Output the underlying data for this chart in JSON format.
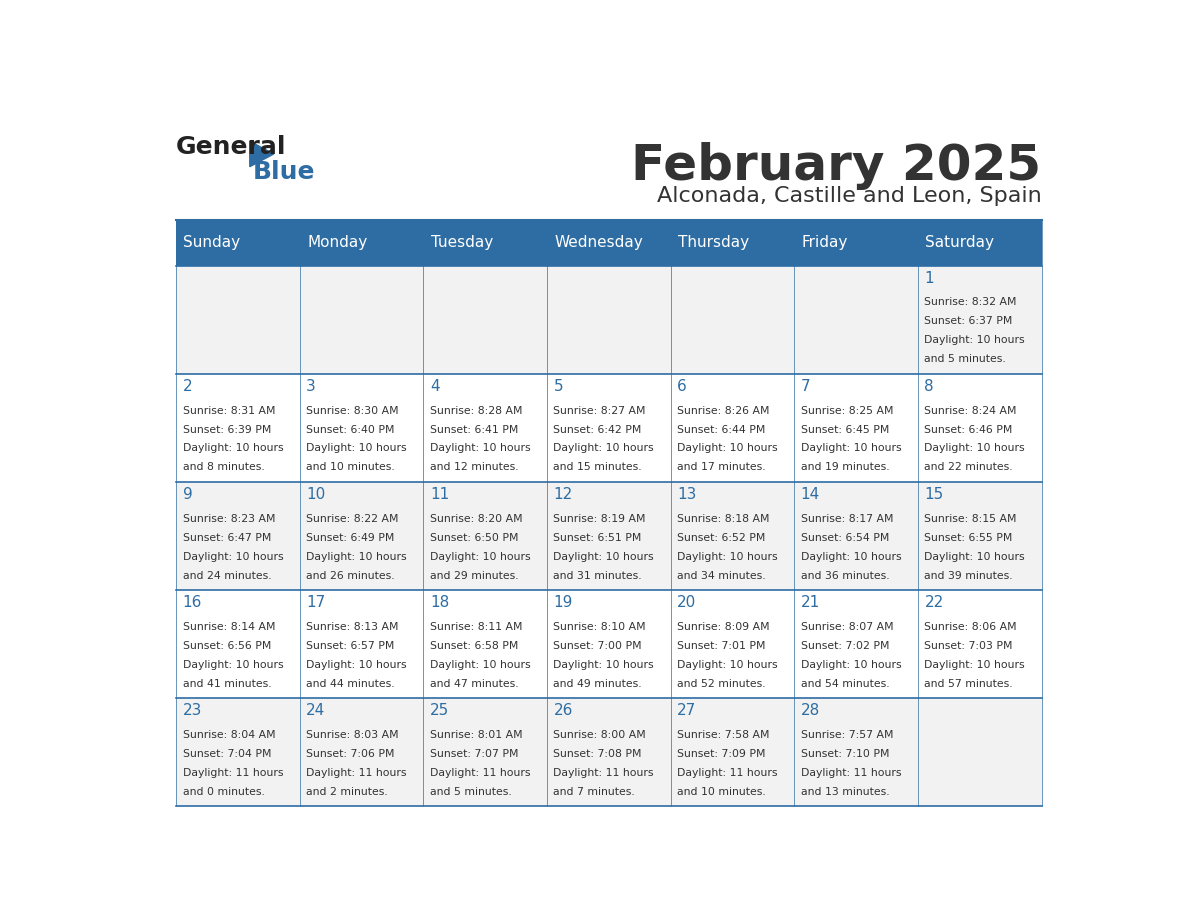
{
  "title": "February 2025",
  "subtitle": "Alconada, Castille and Leon, Spain",
  "header_color": "#2E6DA4",
  "header_text_color": "#FFFFFF",
  "cell_bg_color": "#FFFFFF",
  "alt_bg_color": "#F2F2F2",
  "border_color": "#2E6DA4",
  "day_headers": [
    "Sunday",
    "Monday",
    "Tuesday",
    "Wednesday",
    "Thursday",
    "Friday",
    "Saturday"
  ],
  "days": [
    {
      "day": 1,
      "col": 6,
      "row": 0,
      "sunrise": "8:32 AM",
      "sunset": "6:37 PM",
      "daylight": "10 hours and 5 minutes."
    },
    {
      "day": 2,
      "col": 0,
      "row": 1,
      "sunrise": "8:31 AM",
      "sunset": "6:39 PM",
      "daylight": "10 hours and 8 minutes."
    },
    {
      "day": 3,
      "col": 1,
      "row": 1,
      "sunrise": "8:30 AM",
      "sunset": "6:40 PM",
      "daylight": "10 hours and 10 minutes."
    },
    {
      "day": 4,
      "col": 2,
      "row": 1,
      "sunrise": "8:28 AM",
      "sunset": "6:41 PM",
      "daylight": "10 hours and 12 minutes."
    },
    {
      "day": 5,
      "col": 3,
      "row": 1,
      "sunrise": "8:27 AM",
      "sunset": "6:42 PM",
      "daylight": "10 hours and 15 minutes."
    },
    {
      "day": 6,
      "col": 4,
      "row": 1,
      "sunrise": "8:26 AM",
      "sunset": "6:44 PM",
      "daylight": "10 hours and 17 minutes."
    },
    {
      "day": 7,
      "col": 5,
      "row": 1,
      "sunrise": "8:25 AM",
      "sunset": "6:45 PM",
      "daylight": "10 hours and 19 minutes."
    },
    {
      "day": 8,
      "col": 6,
      "row": 1,
      "sunrise": "8:24 AM",
      "sunset": "6:46 PM",
      "daylight": "10 hours and 22 minutes."
    },
    {
      "day": 9,
      "col": 0,
      "row": 2,
      "sunrise": "8:23 AM",
      "sunset": "6:47 PM",
      "daylight": "10 hours and 24 minutes."
    },
    {
      "day": 10,
      "col": 1,
      "row": 2,
      "sunrise": "8:22 AM",
      "sunset": "6:49 PM",
      "daylight": "10 hours and 26 minutes."
    },
    {
      "day": 11,
      "col": 2,
      "row": 2,
      "sunrise": "8:20 AM",
      "sunset": "6:50 PM",
      "daylight": "10 hours and 29 minutes."
    },
    {
      "day": 12,
      "col": 3,
      "row": 2,
      "sunrise": "8:19 AM",
      "sunset": "6:51 PM",
      "daylight": "10 hours and 31 minutes."
    },
    {
      "day": 13,
      "col": 4,
      "row": 2,
      "sunrise": "8:18 AM",
      "sunset": "6:52 PM",
      "daylight": "10 hours and 34 minutes."
    },
    {
      "day": 14,
      "col": 5,
      "row": 2,
      "sunrise": "8:17 AM",
      "sunset": "6:54 PM",
      "daylight": "10 hours and 36 minutes."
    },
    {
      "day": 15,
      "col": 6,
      "row": 2,
      "sunrise": "8:15 AM",
      "sunset": "6:55 PM",
      "daylight": "10 hours and 39 minutes."
    },
    {
      "day": 16,
      "col": 0,
      "row": 3,
      "sunrise": "8:14 AM",
      "sunset": "6:56 PM",
      "daylight": "10 hours and 41 minutes."
    },
    {
      "day": 17,
      "col": 1,
      "row": 3,
      "sunrise": "8:13 AM",
      "sunset": "6:57 PM",
      "daylight": "10 hours and 44 minutes."
    },
    {
      "day": 18,
      "col": 2,
      "row": 3,
      "sunrise": "8:11 AM",
      "sunset": "6:58 PM",
      "daylight": "10 hours and 47 minutes."
    },
    {
      "day": 19,
      "col": 3,
      "row": 3,
      "sunrise": "8:10 AM",
      "sunset": "7:00 PM",
      "daylight": "10 hours and 49 minutes."
    },
    {
      "day": 20,
      "col": 4,
      "row": 3,
      "sunrise": "8:09 AM",
      "sunset": "7:01 PM",
      "daylight": "10 hours and 52 minutes."
    },
    {
      "day": 21,
      "col": 5,
      "row": 3,
      "sunrise": "8:07 AM",
      "sunset": "7:02 PM",
      "daylight": "10 hours and 54 minutes."
    },
    {
      "day": 22,
      "col": 6,
      "row": 3,
      "sunrise": "8:06 AM",
      "sunset": "7:03 PM",
      "daylight": "10 hours and 57 minutes."
    },
    {
      "day": 23,
      "col": 0,
      "row": 4,
      "sunrise": "8:04 AM",
      "sunset": "7:04 PM",
      "daylight": "11 hours and 0 minutes."
    },
    {
      "day": 24,
      "col": 1,
      "row": 4,
      "sunrise": "8:03 AM",
      "sunset": "7:06 PM",
      "daylight": "11 hours and 2 minutes."
    },
    {
      "day": 25,
      "col": 2,
      "row": 4,
      "sunrise": "8:01 AM",
      "sunset": "7:07 PM",
      "daylight": "11 hours and 5 minutes."
    },
    {
      "day": 26,
      "col": 3,
      "row": 4,
      "sunrise": "8:00 AM",
      "sunset": "7:08 PM",
      "daylight": "11 hours and 7 minutes."
    },
    {
      "day": 27,
      "col": 4,
      "row": 4,
      "sunrise": "7:58 AM",
      "sunset": "7:09 PM",
      "daylight": "11 hours and 10 minutes."
    },
    {
      "day": 28,
      "col": 5,
      "row": 4,
      "sunrise": "7:57 AM",
      "sunset": "7:10 PM",
      "daylight": "11 hours and 13 minutes."
    }
  ],
  "num_rows": 5,
  "general_color": "#333333",
  "blue_text_color": "#2E6DA4",
  "logo_general_color": "#222222",
  "logo_blue_color": "#2E6DA4"
}
